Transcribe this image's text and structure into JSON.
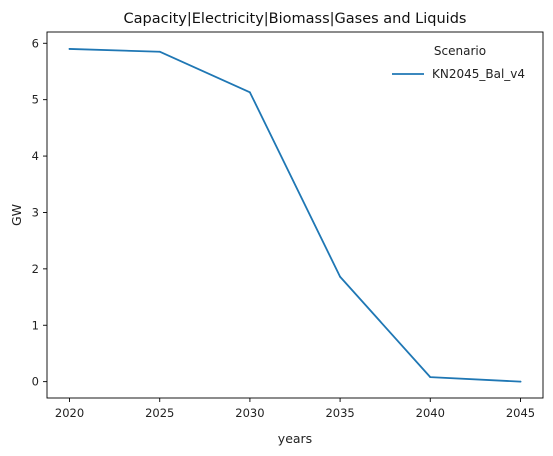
{
  "chart_data": {
    "type": "line",
    "title": "Capacity|Electricity|Biomass|Gases and Liquids",
    "xlabel": "years",
    "ylabel": "GW",
    "x": [
      2020,
      2025,
      2030,
      2035,
      2040,
      2045
    ],
    "x_ticks": [
      "2020",
      "2025",
      "2030",
      "2035",
      "2040",
      "2045"
    ],
    "y_ticks": [
      "0",
      "1",
      "2",
      "3",
      "4",
      "5",
      "6"
    ],
    "xlim": [
      2018.75,
      2046.25
    ],
    "ylim": [
      -0.29,
      6.2
    ],
    "grid": false,
    "legend": {
      "title": "Scenario",
      "placement": "top-right"
    },
    "series": [
      {
        "name": "KN2045_Bal_v4",
        "color": "#1f77b4",
        "values": [
          5.9,
          5.85,
          5.13,
          1.86,
          0.08,
          0.0
        ]
      }
    ]
  }
}
